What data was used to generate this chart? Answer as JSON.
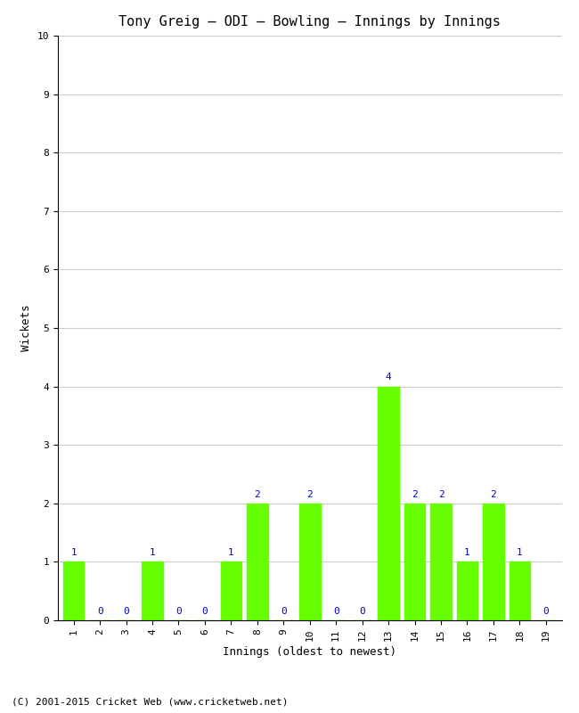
{
  "title": "Tony Greig – ODI – Bowling – Innings by Innings",
  "xlabel": "Innings (oldest to newest)",
  "ylabel": "Wickets",
  "categories": [
    "1",
    "2",
    "3",
    "4",
    "5",
    "6",
    "7",
    "8",
    "9",
    "10",
    "11",
    "12",
    "13",
    "14",
    "15",
    "16",
    "17",
    "18",
    "19"
  ],
  "values": [
    1,
    0,
    0,
    1,
    0,
    0,
    1,
    2,
    0,
    2,
    0,
    0,
    4,
    2,
    2,
    1,
    2,
    1,
    0
  ],
  "bar_color": "#66ff00",
  "bar_edge_color": "#66ff00",
  "label_color": "#0000cc",
  "background_color": "#ffffff",
  "ylim": [
    0,
    10
  ],
  "yticks": [
    0,
    1,
    2,
    3,
    4,
    5,
    6,
    7,
    8,
    9,
    10
  ],
  "grid_color": "#cccccc",
  "title_fontsize": 11,
  "label_fontsize": 9,
  "tick_fontsize": 8,
  "annotation_fontsize": 8,
  "footer_text": "(C) 2001-2015 Cricket Web (www.cricketweb.net)",
  "footer_fontsize": 8
}
